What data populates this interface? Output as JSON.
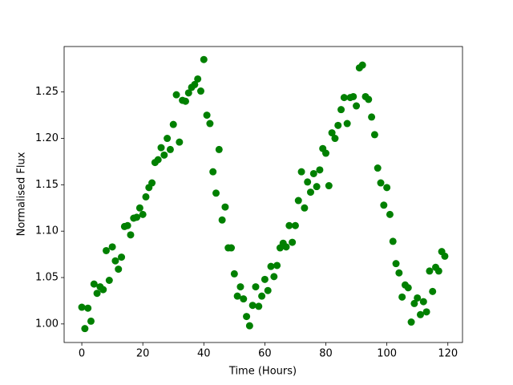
{
  "chart_data": {
    "type": "scatter",
    "xlabel": "Time (Hours)",
    "ylabel": "Normalised Flux",
    "color": "#008000",
    "x": [
      0,
      1,
      2,
      3,
      4,
      5,
      6,
      7,
      8,
      9,
      10,
      11,
      12,
      13,
      14,
      15,
      16,
      17,
      18,
      19,
      20,
      21,
      22,
      23,
      24,
      25,
      26,
      27,
      28,
      29,
      30,
      31,
      32,
      33,
      34,
      35,
      36,
      37,
      38,
      39,
      40,
      41,
      42,
      43,
      44,
      45,
      46,
      47,
      48,
      49,
      50,
      51,
      52,
      53,
      54,
      55,
      56,
      57,
      58,
      59,
      60,
      61,
      62,
      63,
      64,
      65,
      66,
      67,
      68,
      69,
      70,
      71,
      72,
      73,
      74,
      75,
      76,
      77,
      78,
      79,
      80,
      81,
      82,
      83,
      84,
      85,
      86,
      87,
      88,
      89,
      90,
      91,
      92,
      93,
      94,
      95,
      96,
      97,
      98,
      99,
      100,
      101,
      102,
      103,
      104,
      105,
      106,
      107,
      108,
      109,
      110,
      111,
      112,
      113,
      114,
      115,
      116,
      117,
      118,
      119
    ],
    "values": [
      1.018,
      0.995,
      1.017,
      1.003,
      1.043,
      1.033,
      1.04,
      1.037,
      1.079,
      1.047,
      1.083,
      1.068,
      1.059,
      1.072,
      1.105,
      1.106,
      1.096,
      1.114,
      1.115,
      1.125,
      1.118,
      1.137,
      1.147,
      1.152,
      1.174,
      1.177,
      1.19,
      1.182,
      1.2,
      1.188,
      1.215,
      1.247,
      1.196,
      1.241,
      1.24,
      1.249,
      1.255,
      1.258,
      1.264,
      1.251,
      1.285,
      1.225,
      1.216,
      1.164,
      1.141,
      1.188,
      1.112,
      1.126,
      1.082,
      1.082,
      1.054,
      1.03,
      1.04,
      1.027,
      1.008,
      0.998,
      1.02,
      1.04,
      1.019,
      1.03,
      1.048,
      1.036,
      1.062,
      1.051,
      1.063,
      1.082,
      1.087,
      1.083,
      1.106,
      1.088,
      1.106,
      1.133,
      1.164,
      1.125,
      1.153,
      1.142,
      1.162,
      1.148,
      1.166,
      1.189,
      1.184,
      1.149,
      1.206,
      1.2,
      1.214,
      1.231,
      1.244,
      1.216,
      1.244,
      1.245,
      1.235,
      1.276,
      1.279,
      1.245,
      1.242,
      1.223,
      1.204,
      1.168,
      1.152,
      1.128,
      1.147,
      1.118,
      1.089,
      1.065,
      1.055,
      1.029,
      1.042,
      1.039,
      1.002,
      1.022,
      1.028,
      1.01,
      1.024,
      1.013,
      1.057,
      1.035,
      1.061,
      1.057,
      1.078,
      1.073
    ],
    "xlim": [
      -5.8,
      124.8
    ],
    "ylim": [
      0.98,
      1.299
    ],
    "xticks": [
      0,
      20,
      40,
      60,
      80,
      100,
      120
    ],
    "yticks": [
      {
        "value": 1,
        "label": "1.00"
      },
      1.05,
      {
        "value": 1.1,
        "label": "1.10"
      },
      1.15,
      {
        "value": 1.2,
        "label": "1.20"
      },
      1.25
    ]
  }
}
